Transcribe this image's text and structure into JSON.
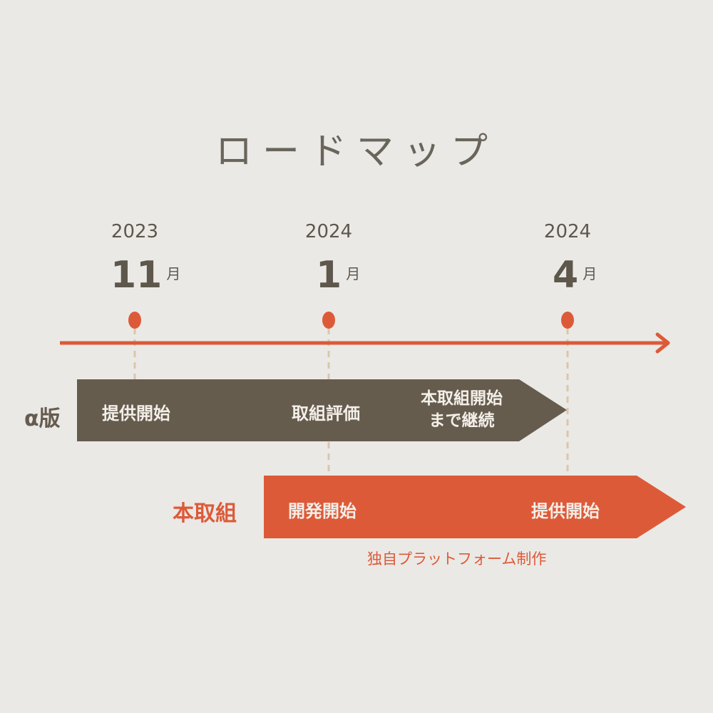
{
  "title": "ロードマップ",
  "colors": {
    "background": "#ebe9e6",
    "brown": "#665c4e",
    "orange": "#dd5a38",
    "dashed": "#d9c7ac"
  },
  "milestones": [
    {
      "year": "2023",
      "month": "11",
      "unit": "月"
    },
    {
      "year": "2024",
      "month": "1",
      "unit": "月"
    },
    {
      "year": "2024",
      "month": "4",
      "unit": "月"
    }
  ],
  "alpha": {
    "label": "α版",
    "steps": [
      "提供開始",
      "取組評価",
      "本取組開始\nまで継続"
    ]
  },
  "main": {
    "label": "本取組",
    "steps": [
      "開発開始",
      "提供開始"
    ],
    "note": "独自プラットフォーム制作"
  }
}
